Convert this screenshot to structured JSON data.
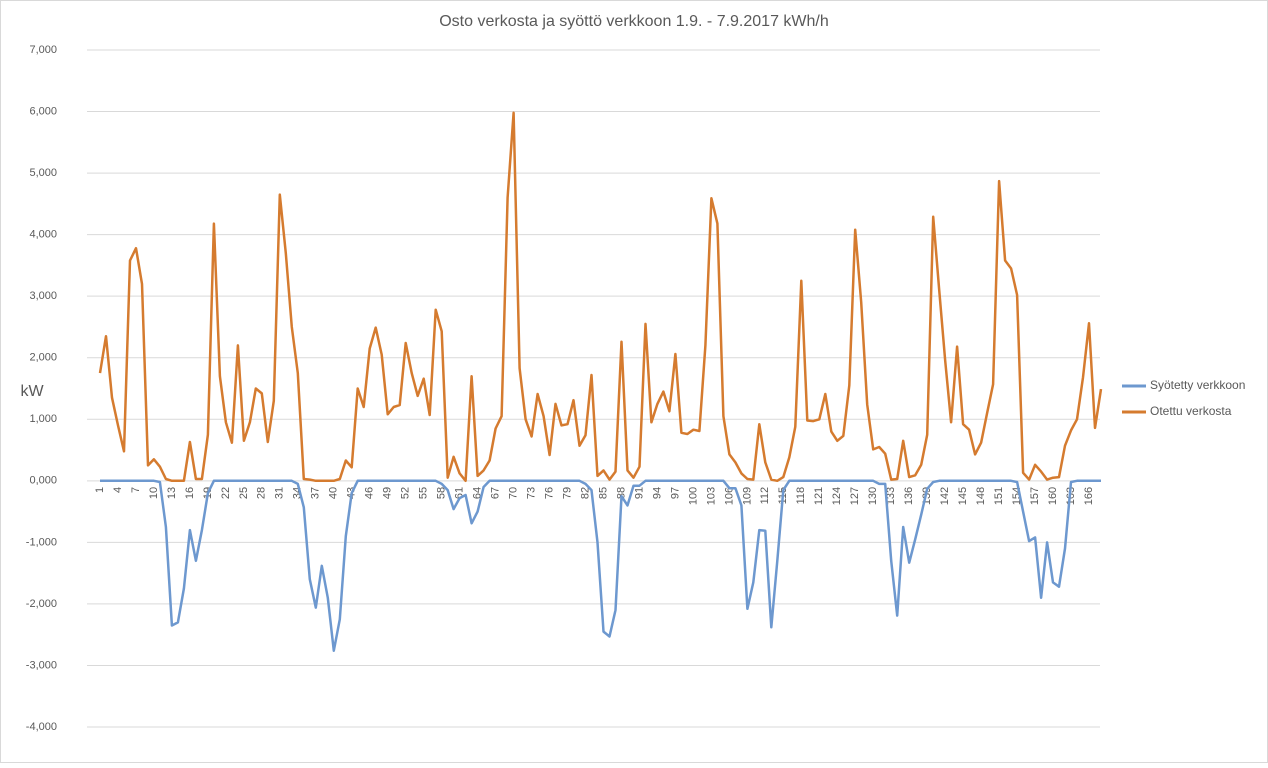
{
  "chart_data": {
    "type": "line",
    "title": "Osto verkosta ja syöttö verkkoon 1.9. - 7.9.2017 kWh/h",
    "y_label": "kW",
    "categories": [
      "1",
      null,
      null,
      "4",
      null,
      null,
      "7",
      null,
      null,
      "10",
      null,
      null,
      "13",
      null,
      null,
      "16",
      null,
      null,
      "19",
      null,
      null,
      "22",
      null,
      null,
      "25",
      null,
      null,
      "28",
      null,
      null,
      "31",
      null,
      null,
      "34",
      null,
      null,
      "37",
      null,
      null,
      "40",
      null,
      null,
      "43",
      null,
      null,
      "46",
      null,
      null,
      "49",
      null,
      null,
      "52",
      null,
      null,
      "55",
      null,
      null,
      "58",
      null,
      null,
      "61",
      null,
      null,
      "64",
      null,
      null,
      "67",
      null,
      null,
      "70",
      null,
      null,
      "73",
      null,
      null,
      "76",
      null,
      null,
      "79",
      null,
      null,
      "82",
      null,
      null,
      "85",
      null,
      null,
      "88",
      null,
      null,
      "91",
      null,
      null,
      "94",
      null,
      null,
      "97",
      null,
      null,
      "100",
      null,
      null,
      "103",
      null,
      null,
      "106",
      null,
      null,
      "109",
      null,
      null,
      "112",
      null,
      null,
      "115",
      null,
      null,
      "118",
      null,
      null,
      "121",
      null,
      null,
      "124",
      null,
      null,
      "127",
      null,
      null,
      "130",
      null,
      null,
      "133",
      null,
      null,
      "136",
      null,
      null,
      "139",
      null,
      null,
      "142",
      null,
      null,
      "145",
      null,
      null,
      "148",
      null,
      null,
      "151",
      null,
      null,
      "154",
      null,
      null,
      "157",
      null,
      null,
      "160",
      null,
      null,
      "163",
      null,
      null,
      "166",
      null,
      null
    ],
    "series": [
      {
        "name": "Syötetty verkkoon",
        "color": "#6d98cf",
        "values": [
          0,
          0,
          0,
          0,
          0,
          0,
          0,
          0,
          0,
          0,
          -20,
          -750,
          -2350,
          -2300,
          -1750,
          -800,
          -1300,
          -800,
          -200,
          0,
          0,
          0,
          0,
          0,
          0,
          0,
          0,
          0,
          0,
          0,
          0,
          0,
          0,
          -50,
          -430,
          -1600,
          -2060,
          -1380,
          -1900,
          -2760,
          -2250,
          -900,
          -200,
          0,
          0,
          0,
          0,
          0,
          0,
          0,
          0,
          0,
          0,
          0,
          0,
          0,
          0,
          -50,
          -150,
          -460,
          -280,
          -230,
          -690,
          -500,
          -100,
          0,
          0,
          0,
          0,
          0,
          0,
          0,
          0,
          0,
          0,
          0,
          0,
          0,
          0,
          0,
          0,
          -50,
          -150,
          -1000,
          -2450,
          -2530,
          -2100,
          -250,
          -400,
          -80,
          -80,
          0,
          0,
          0,
          0,
          0,
          0,
          0,
          0,
          0,
          0,
          0,
          0,
          0,
          0,
          -120,
          -120,
          -400,
          -2080,
          -1650,
          -800,
          -810,
          -2380,
          -1300,
          -150,
          0,
          0,
          0,
          0,
          0,
          0,
          0,
          0,
          0,
          0,
          0,
          0,
          0,
          0,
          0,
          -50,
          -50,
          -1300,
          -2190,
          -750,
          -1330,
          -950,
          -550,
          -130,
          -20,
          0,
          0,
          0,
          0,
          0,
          0,
          0,
          0,
          0,
          0,
          0,
          0,
          0,
          -20,
          -500,
          -980,
          -920,
          -1900,
          -1000,
          -1650,
          -1720,
          -1100,
          -20,
          0,
          0,
          0,
          0,
          0
        ]
      },
      {
        "name": "Otettu verkosta",
        "color": "#d57b2f",
        "values": [
          1750,
          2350,
          1350,
          900,
          480,
          3580,
          3780,
          3200,
          250,
          350,
          230,
          30,
          0,
          0,
          0,
          630,
          30,
          30,
          750,
          4180,
          1700,
          950,
          620,
          2200,
          650,
          950,
          1500,
          1420,
          630,
          1300,
          4650,
          3700,
          2500,
          1750,
          30,
          20,
          0,
          0,
          0,
          0,
          30,
          330,
          220,
          1500,
          1200,
          2150,
          2490,
          2050,
          1080,
          1200,
          1230,
          2240,
          1750,
          1380,
          1660,
          1070,
          2780,
          2430,
          50,
          390,
          120,
          0,
          1700,
          80,
          170,
          330,
          850,
          1050,
          4600,
          5980,
          1830,
          1000,
          720,
          1410,
          1050,
          420,
          1250,
          900,
          920,
          1310,
          570,
          740,
          1720,
          80,
          170,
          20,
          150,
          2260,
          170,
          50,
          230,
          2550,
          950,
          1250,
          1450,
          1130,
          2060,
          780,
          760,
          830,
          810,
          2200,
          4590,
          4180,
          1050,
          430,
          300,
          120,
          30,
          20,
          920,
          300,
          20,
          0,
          60,
          380,
          880,
          3250,
          980,
          970,
          1000,
          1410,
          800,
          650,
          730,
          1550,
          4080,
          2900,
          1240,
          510,
          550,
          440,
          20,
          30,
          650,
          60,
          90,
          260,
          750,
          4290,
          3100,
          1950,
          950,
          2180,
          920,
          830,
          430,
          620,
          1100,
          1570,
          4870,
          3580,
          3450,
          3020,
          130,
          20,
          260,
          150,
          20,
          50,
          60,
          570,
          820,
          1000,
          1680,
          2560,
          860,
          1490
        ]
      }
    ],
    "ylim": [
      -4000,
      7000
    ],
    "yticks": [
      {
        "value": -4000,
        "label": "-4,000"
      },
      {
        "value": -3000,
        "label": "-3,000"
      },
      {
        "value": -2000,
        "label": "-2,000"
      },
      {
        "value": -1000,
        "label": "-1,000"
      },
      {
        "value": 0,
        "label": "0,000"
      },
      {
        "value": 1000,
        "label": "1,000"
      },
      {
        "value": 2000,
        "label": "2,000"
      },
      {
        "value": 3000,
        "label": "3,000"
      },
      {
        "value": 4000,
        "label": "4,000"
      },
      {
        "value": 5000,
        "label": "5,000"
      },
      {
        "value": 6000,
        "label": "6,000"
      },
      {
        "value": 7000,
        "label": "7,000"
      }
    ],
    "grid": true,
    "legend": "right"
  }
}
